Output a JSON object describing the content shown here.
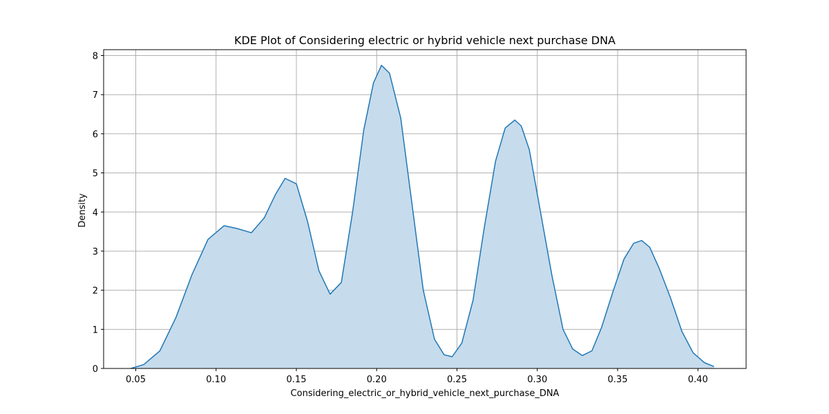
{
  "chart_data": {
    "type": "area",
    "title": "KDE Plot of Considering electric or hybrid vehicle next purchase DNA",
    "xlabel": "Considering_electric_or_hybrid_vehicle_next_purchase_DNA",
    "ylabel": "Density",
    "xlim": [
      0.03,
      0.43
    ],
    "ylim": [
      0,
      8.15
    ],
    "xticks": [
      "0.05",
      "0.10",
      "0.15",
      "0.20",
      "0.25",
      "0.30",
      "0.35",
      "0.40"
    ],
    "yticks": [
      "0",
      "1",
      "2",
      "3",
      "4",
      "5",
      "6",
      "7",
      "8"
    ],
    "grid": true,
    "colors": {
      "line": "#1f77b4",
      "fill": "#c6dbec",
      "grid": "#b0b0b0"
    },
    "series": [
      {
        "x": [
          0.047,
          0.055,
          0.065,
          0.075,
          0.085,
          0.095,
          0.105,
          0.113,
          0.122,
          0.13,
          0.137,
          0.143,
          0.15,
          0.157,
          0.164,
          0.171,
          0.178,
          0.185,
          0.192,
          0.198,
          0.203,
          0.208,
          0.215,
          0.222,
          0.229,
          0.236,
          0.242,
          0.247,
          0.253,
          0.26,
          0.267,
          0.274,
          0.28,
          0.286,
          0.29,
          0.295,
          0.302,
          0.309,
          0.316,
          0.322,
          0.328,
          0.334,
          0.34,
          0.347,
          0.354,
          0.36,
          0.365,
          0.37,
          0.376,
          0.383,
          0.39,
          0.397,
          0.404,
          0.41
        ],
        "y": [
          0.0,
          0.1,
          0.45,
          1.3,
          2.4,
          3.3,
          3.65,
          3.58,
          3.47,
          3.85,
          4.45,
          4.86,
          4.72,
          3.75,
          2.5,
          1.9,
          2.2,
          4.0,
          6.1,
          7.3,
          7.75,
          7.55,
          6.4,
          4.2,
          2.0,
          0.75,
          0.35,
          0.3,
          0.65,
          1.75,
          3.6,
          5.3,
          6.15,
          6.35,
          6.2,
          5.6,
          4.0,
          2.4,
          1.0,
          0.5,
          0.33,
          0.45,
          1.05,
          1.95,
          2.8,
          3.2,
          3.27,
          3.1,
          2.55,
          1.8,
          0.95,
          0.4,
          0.15,
          0.05
        ]
      }
    ]
  }
}
